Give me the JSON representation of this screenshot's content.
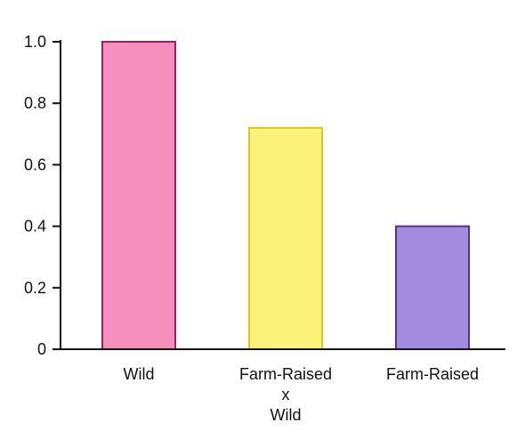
{
  "chart_data": {
    "type": "bar",
    "title": "",
    "xlabel": "",
    "ylabel": "",
    "ylim": [
      0,
      1.0
    ],
    "yticks": [
      0,
      0.2,
      0.4,
      0.6,
      0.8,
      1.0
    ],
    "ytick_labels": [
      "0",
      "0.2",
      "0.4",
      "0.6",
      "0.8",
      "1.0"
    ],
    "grid": false,
    "categories": [
      {
        "lines": [
          "Wild"
        ]
      },
      {
        "lines": [
          "Farm-Raised",
          "x",
          "Wild"
        ]
      },
      {
        "lines": [
          "Farm-Raised"
        ]
      }
    ],
    "values": [
      1.0,
      0.72,
      0.4
    ],
    "colors": [
      {
        "fill": "#f48fbe",
        "stroke": "#a0205f"
      },
      {
        "fill": "#fbf379",
        "stroke": "#d8c81a"
      },
      {
        "fill": "#a38be0",
        "stroke": "#5a2f8a"
      }
    ]
  }
}
